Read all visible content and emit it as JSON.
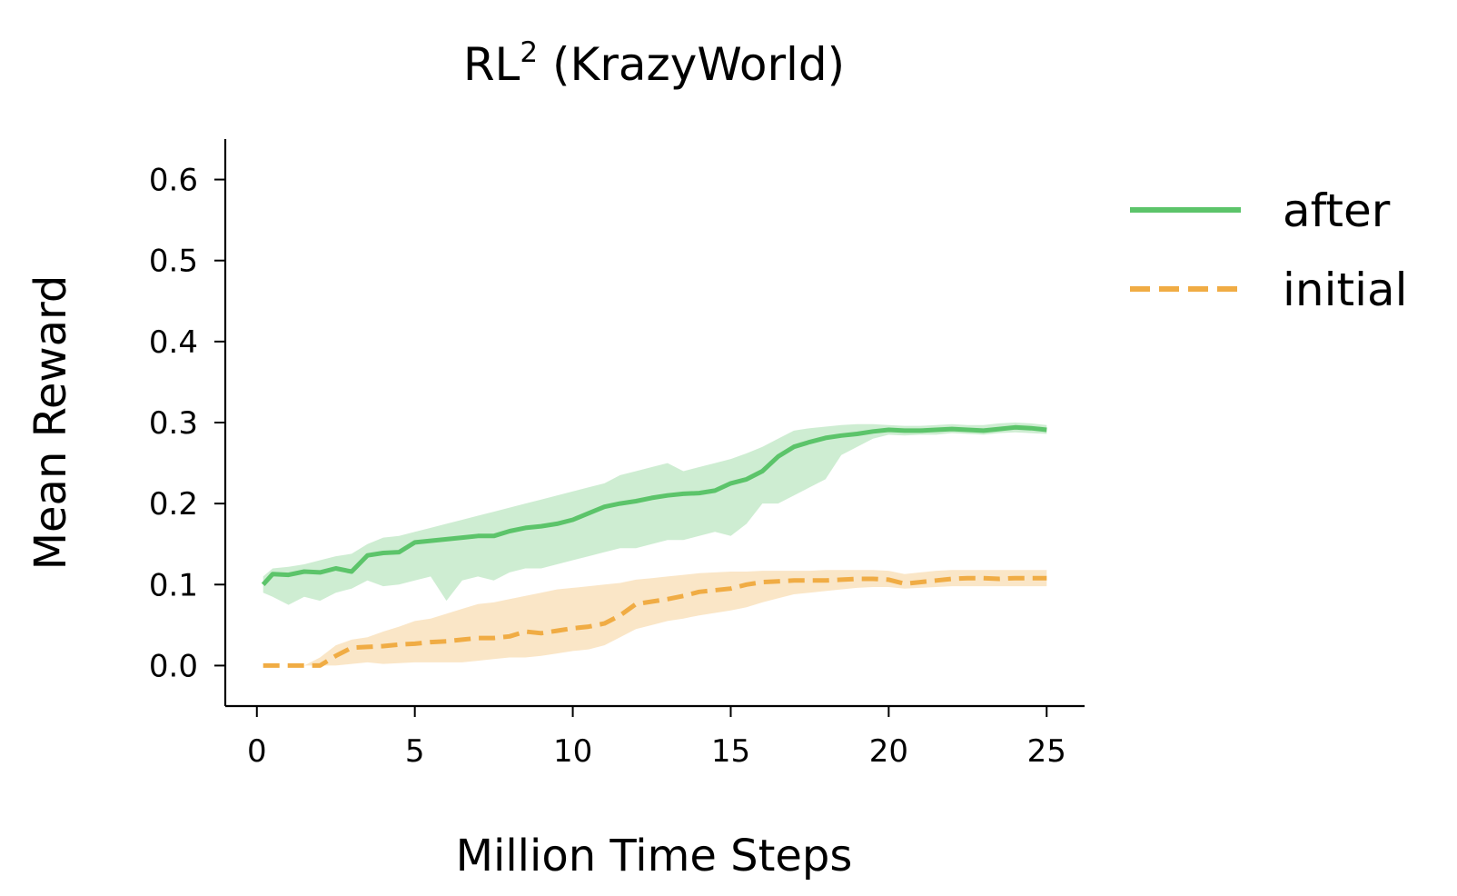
{
  "chart_data": {
    "type": "line",
    "title": "RL",
    "title_superscript": "2",
    "title_suffix": " (KrazyWorld)",
    "xlabel": "Million Time Steps",
    "ylabel": "Mean Reward",
    "xlim": [
      -1,
      26.2
    ],
    "ylim": [
      -0.05,
      0.65
    ],
    "xticks": [
      0,
      5,
      10,
      15,
      20,
      25
    ],
    "xtick_labels": [
      "0",
      "5",
      "10",
      "15",
      "20",
      "25"
    ],
    "yticks": [
      0.0,
      0.1,
      0.2,
      0.3,
      0.4,
      0.5,
      0.6
    ],
    "ytick_labels": [
      "0.0",
      "0.1",
      "0.2",
      "0.3",
      "0.4",
      "0.5",
      "0.6"
    ],
    "grid": false,
    "legend_position": "outside-top-right",
    "series": [
      {
        "name": "after",
        "color": "#5cc46a",
        "line_style": "solid",
        "x": [
          0.2,
          0.5,
          1,
          1.5,
          2,
          2.5,
          3,
          3.5,
          4,
          4.5,
          5,
          5.5,
          6,
          6.5,
          7,
          7.5,
          8,
          8.5,
          9,
          9.5,
          10,
          10.5,
          11,
          11.5,
          12,
          12.5,
          13,
          13.5,
          14,
          14.5,
          15,
          15.5,
          16,
          16.5,
          17,
          17.5,
          18,
          18.5,
          19,
          19.5,
          20,
          20.5,
          21,
          21.5,
          22,
          22.5,
          23,
          23.5,
          24,
          24.5,
          25
        ],
        "y": [
          0.1,
          0.113,
          0.112,
          0.116,
          0.115,
          0.12,
          0.116,
          0.136,
          0.139,
          0.14,
          0.152,
          0.154,
          0.156,
          0.158,
          0.16,
          0.16,
          0.166,
          0.17,
          0.172,
          0.175,
          0.18,
          0.188,
          0.196,
          0.2,
          0.203,
          0.207,
          0.21,
          0.212,
          0.213,
          0.216,
          0.225,
          0.23,
          0.24,
          0.258,
          0.27,
          0.276,
          0.281,
          0.284,
          0.286,
          0.289,
          0.291,
          0.29,
          0.29,
          0.291,
          0.292,
          0.291,
          0.29,
          0.292,
          0.294,
          0.293,
          0.291
        ],
        "lower": [
          0.09,
          0.085,
          0.075,
          0.085,
          0.08,
          0.09,
          0.095,
          0.105,
          0.098,
          0.1,
          0.105,
          0.11,
          0.08,
          0.105,
          0.11,
          0.105,
          0.115,
          0.12,
          0.12,
          0.125,
          0.13,
          0.135,
          0.14,
          0.145,
          0.145,
          0.15,
          0.155,
          0.155,
          0.16,
          0.165,
          0.16,
          0.175,
          0.2,
          0.2,
          0.21,
          0.22,
          0.23,
          0.26,
          0.27,
          0.28,
          0.285,
          0.284,
          0.285,
          0.285,
          0.287,
          0.286,
          0.285,
          0.287,
          0.288,
          0.287,
          0.286
        ],
        "upper": [
          0.11,
          0.12,
          0.122,
          0.125,
          0.13,
          0.135,
          0.138,
          0.15,
          0.158,
          0.16,
          0.165,
          0.17,
          0.175,
          0.18,
          0.185,
          0.19,
          0.195,
          0.2,
          0.205,
          0.21,
          0.215,
          0.22,
          0.225,
          0.235,
          0.24,
          0.245,
          0.25,
          0.24,
          0.245,
          0.25,
          0.255,
          0.262,
          0.27,
          0.28,
          0.29,
          0.293,
          0.295,
          0.297,
          0.298,
          0.298,
          0.297,
          0.296,
          0.296,
          0.297,
          0.298,
          0.297,
          0.297,
          0.299,
          0.3,
          0.299,
          0.297
        ]
      },
      {
        "name": "initial",
        "color": "#f0ac44",
        "line_style": "dashed",
        "x": [
          0.2,
          0.5,
          1,
          1.5,
          2,
          2.5,
          3,
          3.5,
          4,
          4.5,
          5,
          5.5,
          6,
          6.5,
          7,
          7.5,
          8,
          8.5,
          9,
          9.5,
          10,
          10.5,
          11,
          11.5,
          12,
          12.5,
          13,
          13.5,
          14,
          14.5,
          15,
          15.5,
          16,
          16.5,
          17,
          17.5,
          18,
          18.5,
          19,
          19.5,
          20,
          20.5,
          21,
          21.5,
          22,
          22.5,
          23,
          23.5,
          24,
          24.5,
          25
        ],
        "y": [
          0.0,
          0.0,
          0.0,
          0.0,
          0.0,
          0.012,
          0.022,
          0.023,
          0.024,
          0.026,
          0.027,
          0.029,
          0.03,
          0.032,
          0.034,
          0.034,
          0.036,
          0.042,
          0.04,
          0.043,
          0.046,
          0.048,
          0.052,
          0.062,
          0.076,
          0.079,
          0.082,
          0.086,
          0.091,
          0.093,
          0.095,
          0.1,
          0.103,
          0.104,
          0.105,
          0.105,
          0.105,
          0.106,
          0.107,
          0.107,
          0.106,
          0.101,
          0.103,
          0.105,
          0.107,
          0.108,
          0.108,
          0.107,
          0.108,
          0.108,
          0.108
        ],
        "lower": [
          0.0,
          0.0,
          0.0,
          0.0,
          0.0,
          0.0,
          0.002,
          0.004,
          0.002,
          0.003,
          0.004,
          0.004,
          0.004,
          0.004,
          0.006,
          0.008,
          0.01,
          0.01,
          0.012,
          0.015,
          0.018,
          0.02,
          0.025,
          0.035,
          0.045,
          0.05,
          0.055,
          0.058,
          0.062,
          0.065,
          0.068,
          0.072,
          0.078,
          0.083,
          0.088,
          0.09,
          0.092,
          0.094,
          0.096,
          0.097,
          0.097,
          0.095,
          0.096,
          0.097,
          0.098,
          0.098,
          0.098,
          0.098,
          0.098,
          0.098,
          0.098
        ],
        "upper": [
          0.0,
          0.0,
          0.0,
          0.0,
          0.01,
          0.025,
          0.032,
          0.035,
          0.042,
          0.048,
          0.055,
          0.058,
          0.064,
          0.07,
          0.076,
          0.078,
          0.082,
          0.086,
          0.09,
          0.094,
          0.096,
          0.098,
          0.1,
          0.102,
          0.106,
          0.108,
          0.11,
          0.112,
          0.114,
          0.115,
          0.116,
          0.116,
          0.117,
          0.117,
          0.117,
          0.117,
          0.118,
          0.118,
          0.118,
          0.118,
          0.117,
          0.113,
          0.115,
          0.117,
          0.118,
          0.118,
          0.118,
          0.118,
          0.118,
          0.118,
          0.118
        ]
      }
    ]
  }
}
